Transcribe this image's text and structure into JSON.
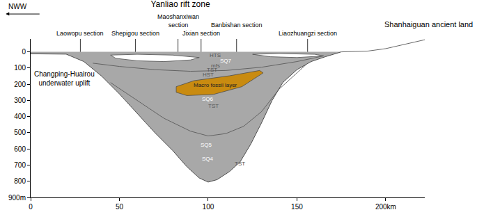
{
  "chart_data": {
    "type": "cross_section",
    "title": "Yanliao rift zone",
    "direction_label": "NWW",
    "right_label": "Shanhaiguan ancient land",
    "xlim": [
      0,
      222
    ],
    "xticks": [
      0,
      50,
      100,
      150,
      {
        "value": 200,
        "label": "200km"
      }
    ],
    "ylim": [
      900,
      -80
    ],
    "yticks": [
      0,
      100,
      200,
      300,
      400,
      500,
      600,
      700,
      800,
      {
        "value": 900,
        "label": "900m"
      }
    ],
    "grid": false,
    "sections": [
      {
        "text": [
          "Laowopu section"
        ],
        "x": 28
      },
      {
        "text": [
          "Shepigou section"
        ],
        "x": 59
      },
      {
        "text": [
          "Maoshanxiwan",
          "section"
        ],
        "x": 83
      },
      {
        "text": [
          "Jixian section"
        ],
        "x": 96
      },
      {
        "text": [
          "Banbishan section"
        ],
        "x": 116
      },
      {
        "text": [
          "Liaozhuangzi section"
        ],
        "x": 156
      }
    ],
    "series": [
      {
        "type": "area",
        "color": "#a8a8a8",
        "x": [
          0,
          10,
          20,
          30,
          40,
          50,
          60,
          70,
          80,
          88,
          95,
          100,
          105,
          112,
          118,
          124,
          130,
          136,
          142,
          150,
          158,
          166,
          175
        ],
        "values": [
          12,
          12,
          14,
          60,
          150,
          260,
          380,
          500,
          610,
          710,
          780,
          805,
          790,
          740,
          680,
          570,
          440,
          300,
          190,
          110,
          60,
          30,
          0
        ]
      },
      {
        "type": "line",
        "color": "#555555",
        "x": [
          175,
          190,
          200,
          210,
          222
        ],
        "values": [
          0,
          -5,
          -20,
          -45,
          -75
        ]
      },
      {
        "type": "line",
        "color": "#5a5a5a",
        "x": [
          35,
          50,
          70,
          90,
          110,
          130,
          150,
          165
        ],
        "values": [
          70,
          90,
          110,
          120,
          115,
          95,
          60,
          25
        ]
      },
      {
        "type": "line",
        "color": "#5a5a5a",
        "x": [
          45,
          60,
          75,
          90,
          100,
          110,
          120,
          130,
          140,
          155
        ],
        "values": [
          190,
          300,
          410,
          490,
          520,
          505,
          460,
          370,
          230,
          80
        ]
      },
      {
        "type": "polygon",
        "color": "#ffffff",
        "x": [
          45,
          60,
          80,
          95,
          90,
          75,
          60,
          48,
          45
        ],
        "values": [
          20,
          15,
          20,
          35,
          50,
          60,
          55,
          40,
          20
        ]
      },
      {
        "type": "polygon",
        "color": "#ffffff",
        "x": [
          125,
          140,
          160,
          165,
          150,
          135,
          125
        ],
        "values": [
          15,
          10,
          15,
          25,
          35,
          30,
          15
        ]
      },
      {
        "type": "polygon",
        "color": "#c98b10",
        "x": [
          82,
          92,
          112,
          129,
          131,
          119,
          103,
          88,
          82,
          82
        ],
        "values": [
          215,
          178,
          148,
          115,
          130,
          215,
          263,
          270,
          250,
          215
        ]
      }
    ],
    "annotations": [
      {
        "text": [
          "Changping-Huairou",
          "underwater uplift"
        ],
        "x": 19,
        "y": 165,
        "color": "#000000"
      },
      {
        "text": [
          "HTS"
        ],
        "x": 104,
        "y": 22,
        "color": "#555555"
      },
      {
        "text": [
          "SQ7"
        ],
        "x": 110,
        "y": 55,
        "color": "#ffffff"
      },
      {
        "text": [
          "mfs"
        ],
        "x": 104,
        "y": 85,
        "color": "#555555"
      },
      {
        "text": [
          "TST"
        ],
        "x": 102,
        "y": 112,
        "color": "#555555"
      },
      {
        "text": [
          "HST"
        ],
        "x": 100,
        "y": 140,
        "color": "#555555"
      },
      {
        "text": [
          "Macro fossil layer"
        ],
        "x": 104,
        "y": 205,
        "color": "#222222"
      },
      {
        "text": [
          "SQ6"
        ],
        "x": 100,
        "y": 290,
        "color": "#ffffff"
      },
      {
        "text": [
          "TST"
        ],
        "x": 103,
        "y": 335,
        "color": "#555555"
      },
      {
        "text": [
          "SQ5"
        ],
        "x": 99,
        "y": 575,
        "color": "#ffffff"
      },
      {
        "text": [
          "SQ4"
        ],
        "x": 100,
        "y": 660,
        "color": "#ffffff"
      },
      {
        "text": [
          "TST"
        ],
        "x": 118,
        "y": 690,
        "color": "#555555"
      }
    ]
  }
}
